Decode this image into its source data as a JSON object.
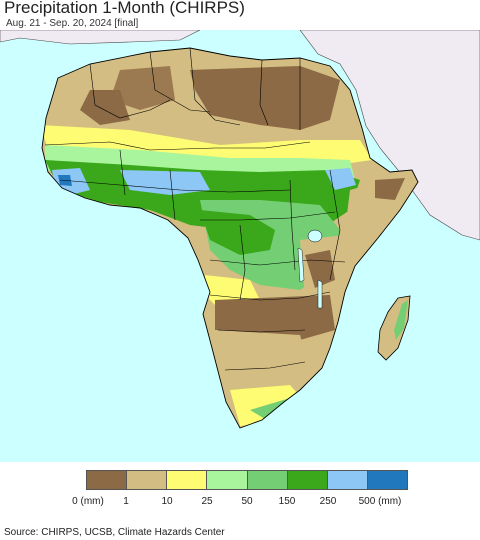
{
  "header": {
    "title": "Precipitation 1-Month (CHIRPS)",
    "subtitle": "Aug. 21 - Sep. 20, 2024 [final]"
  },
  "legend": {
    "colors": [
      "#8b6a45",
      "#d4bd82",
      "#fdfc72",
      "#a9f59d",
      "#74cf74",
      "#3aa81a",
      "#8cc7f5",
      "#2178bd"
    ],
    "ticks": [
      "0 (mm)",
      "1",
      "10",
      "25",
      "50",
      "150",
      "250",
      "500 (mm)"
    ]
  },
  "map": {
    "ocean_color": "#ccffff",
    "outside_region_color": "#f0eaf2",
    "border_color": "#000000"
  },
  "footer": {
    "source": "Source: CHIRPS, UCSB, Climate Hazards Center"
  }
}
